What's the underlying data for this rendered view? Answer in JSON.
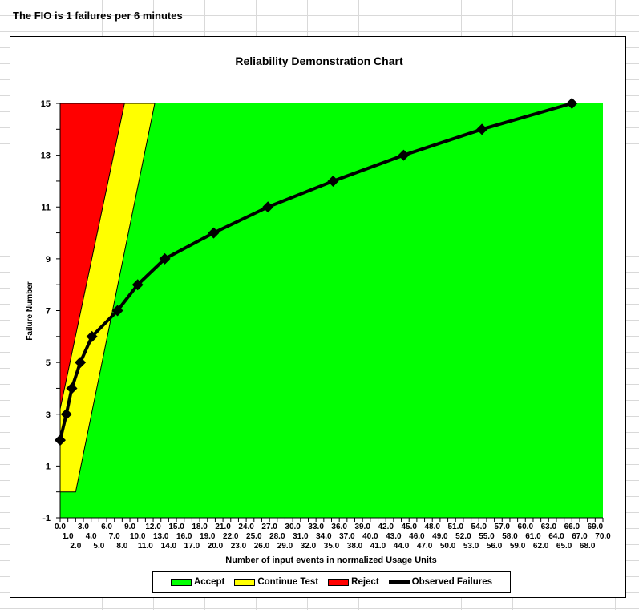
{
  "header": {
    "text": "The FIO is 1 failures per 6 minutes"
  },
  "colors": {
    "accept": "#00ff00",
    "continue": "#ffff00",
    "reject": "#ff0000",
    "observed": "#000000"
  },
  "chart_data": {
    "type": "line",
    "title": "Reliability Demonstration Chart",
    "xlabel": "Number of input events in normalized Usage Units",
    "ylabel": "Failure Number",
    "xlim": [
      0,
      70
    ],
    "ylim": [
      -1,
      15
    ],
    "x_ticks_step": 1,
    "y_tick_labels": [
      "-1",
      "1",
      "3",
      "5",
      "7",
      "9",
      "11",
      "13",
      "15"
    ],
    "regions": {
      "reject_boundary": [
        [
          0,
          3.2
        ],
        [
          8.3,
          15
        ]
      ],
      "accept_boundary": [
        [
          0,
          0
        ],
        [
          2.0,
          0
        ],
        [
          12.2,
          15
        ]
      ]
    },
    "series": [
      {
        "name": "Observed Failures",
        "x": [
          0,
          0.8,
          1.5,
          2.6,
          4.1,
          7.4,
          10.0,
          13.5,
          19.8,
          26.8,
          35.2,
          44.3,
          54.4,
          66.0
        ],
        "y": [
          2,
          3,
          4,
          5,
          6,
          7,
          8,
          9,
          10,
          11,
          12,
          13,
          14,
          15
        ]
      }
    ],
    "legend": {
      "placement": "bottom",
      "items": [
        "Accept",
        "Continue Test",
        "Reject",
        "Observed Failures"
      ]
    }
  }
}
